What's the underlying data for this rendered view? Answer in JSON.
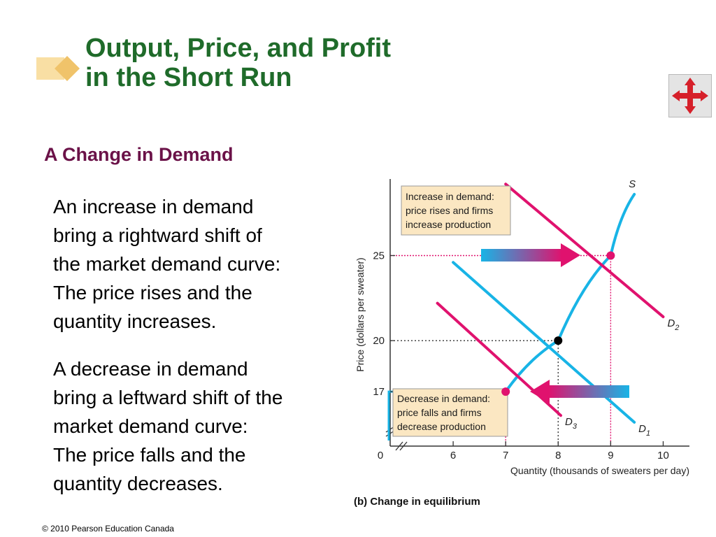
{
  "slide": {
    "title_line1": "Output, Price, and Profit",
    "title_line2": "in the Short Run",
    "subheading": "A Change in Demand",
    "paragraph1": [
      "An increase in demand",
      "bring a rightward shift of",
      "the market demand curve:",
      "The price rises and the",
      "quantity increases."
    ],
    "paragraph2": [
      "A decrease in demand",
      "bring a leftward shift of the",
      "market demand curve:",
      "The price falls and the",
      "quantity decreases."
    ],
    "footer": "© 2010 Pearson Education Canada",
    "nav_icon": "four-way-arrows-icon"
  },
  "colors": {
    "title": "#1f6b2a",
    "subheading": "#6b1248",
    "magenta": "#e0126e",
    "cyan": "#18b4e6",
    "label_red": "#d6204e",
    "annotation_bg": "#fbe7c2",
    "logo": "#f3c97a"
  },
  "chart_data": {
    "type": "line",
    "xlabel": "Quantity (thousands of sweaters per day)",
    "ylabel": "Price (dollars per sweater)",
    "caption": "(b) Change in equilibrium",
    "origin_label": "0",
    "xlim": [
      4.8,
      10.5
    ],
    "ylim": [
      13.8,
      29.5
    ],
    "x_ticks": [
      6,
      7,
      8,
      9,
      10
    ],
    "y_ticks": [
      17,
      20,
      25
    ],
    "series": [
      {
        "name": "S",
        "color": "#18b4e6",
        "points": [
          [
            7,
            17
          ],
          [
            8,
            20
          ],
          [
            9,
            25
          ],
          [
            9.45,
            28.6
          ]
        ]
      },
      {
        "name": "D1",
        "color": "#18b4e6",
        "points": [
          [
            6.0,
            24.6
          ],
          [
            9.45,
            15.2
          ]
        ]
      },
      {
        "name": "D2",
        "color": "#e0126e",
        "points": [
          [
            7.0,
            29.2
          ],
          [
            10.0,
            21.4
          ]
        ]
      },
      {
        "name": "D3",
        "color": "#e0126e",
        "points": [
          [
            5.7,
            22.2
          ],
          [
            8.05,
            15.6
          ]
        ]
      }
    ],
    "curve_labels": [
      {
        "text": "S",
        "sub": ""
      },
      {
        "text": "D",
        "sub": "1"
      },
      {
        "text": "D",
        "sub": "2"
      },
      {
        "text": "D",
        "sub": "3"
      }
    ],
    "equilibria": [
      {
        "x": 8,
        "y": 20,
        "color": "#000000"
      },
      {
        "x": 9,
        "y": 25,
        "color": "#e0126e"
      },
      {
        "x": 7,
        "y": 17,
        "color": "#e0126e"
      }
    ],
    "annotations": {
      "increase": [
        "Increase in demand:",
        "price rises and firms",
        "increase production"
      ],
      "decrease": [
        "Decrease in demand:",
        "price falls and firms",
        "decrease production"
      ]
    },
    "highlighted_x_ticks": [
      7,
      9
    ],
    "highlighted_y_ticks": [
      17,
      25
    ],
    "grid": false
  }
}
